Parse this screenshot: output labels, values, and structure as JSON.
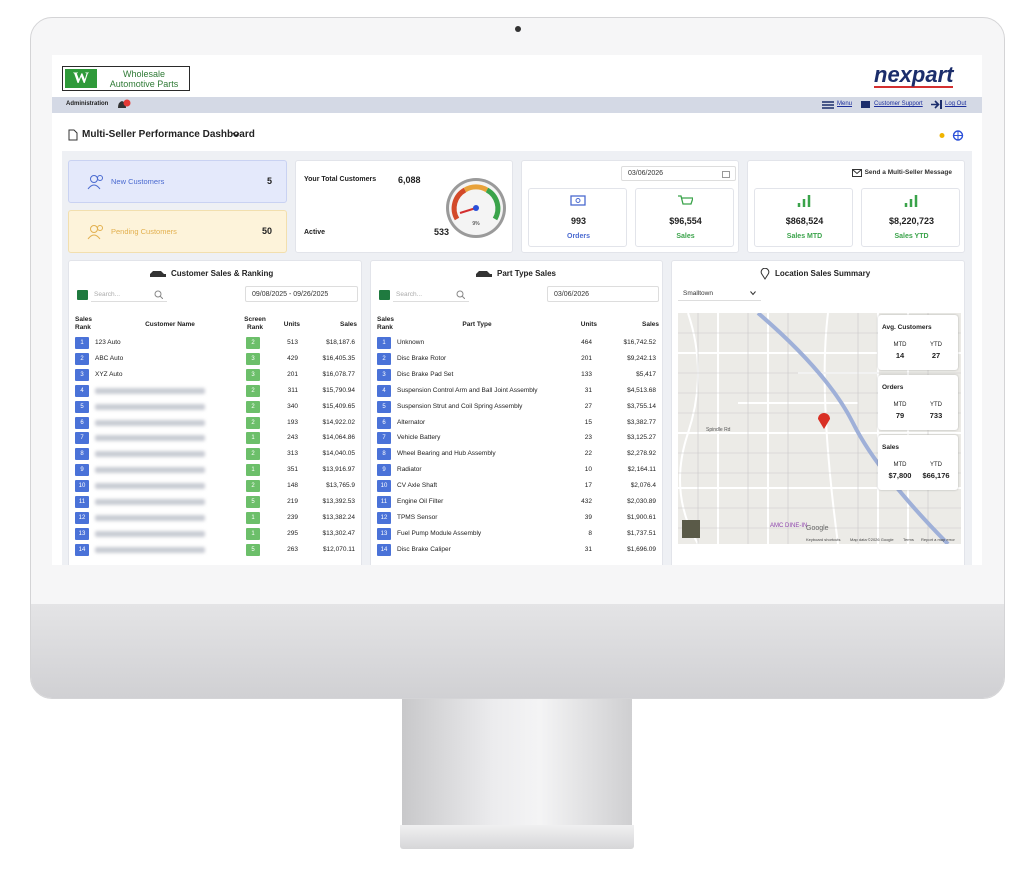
{
  "header": {
    "logo_line1": "Wholesale",
    "logo_line2": "Automotive Parts",
    "brand": "nexpart"
  },
  "nav": {
    "left": "Administration",
    "links": [
      "Menu",
      "Customer Support",
      "Log Out"
    ]
  },
  "title": "Multi-Seller Performance Dashboard",
  "cards": {
    "new_customers": {
      "label": "New Customers",
      "value": 5
    },
    "pending_customers": {
      "label": "Pending Customers",
      "value": 50
    },
    "total_customers": {
      "label": "Your Total Customers",
      "value": "6,088"
    },
    "active": {
      "label": "Active",
      "value": 533
    },
    "gauge_label": "9%",
    "date": "03/06/2026",
    "orders": {
      "value": 993,
      "label": "Orders"
    },
    "sales": {
      "value": "$96,554",
      "label": "Sales"
    },
    "message": "Send a Multi-Seller Message",
    "sales_mtd": {
      "value": "$868,524",
      "label": "Sales MTD"
    },
    "sales_ytd": {
      "value": "$8,220,723",
      "label": "Sales YTD"
    }
  },
  "customer_sales": {
    "title": "Customer Sales & Ranking",
    "search": "Search...",
    "date_range": "09/08/2025 - 09/26/2025",
    "columns": [
      "Sales Rank",
      "Customer Name",
      "Screen Rank",
      "Units",
      "Sales"
    ],
    "rows": [
      [
        1,
        "123 Auto",
        2,
        513,
        "$18,187.6"
      ],
      [
        2,
        "ABC Auto",
        3,
        429,
        "$16,405.35"
      ],
      [
        3,
        "XYZ Auto",
        3,
        201,
        "$16,078.77"
      ],
      [
        4,
        null,
        2,
        311,
        "$15,790.94"
      ],
      [
        5,
        null,
        2,
        340,
        "$15,409.65"
      ],
      [
        6,
        null,
        2,
        193,
        "$14,922.02"
      ],
      [
        7,
        null,
        1,
        243,
        "$14,064.86"
      ],
      [
        8,
        null,
        2,
        313,
        "$14,040.05"
      ],
      [
        9,
        null,
        1,
        351,
        "$13,916.97"
      ],
      [
        10,
        null,
        2,
        148,
        "$13,765.9"
      ],
      [
        11,
        null,
        5,
        219,
        "$13,392.53"
      ],
      [
        12,
        null,
        1,
        239,
        "$13,382.24"
      ],
      [
        13,
        null,
        1,
        295,
        "$13,302.47"
      ],
      [
        14,
        null,
        5,
        263,
        "$12,070.11"
      ]
    ]
  },
  "part_type_sales": {
    "title": "Part Type Sales",
    "search": "Search...",
    "date": "03/06/2026",
    "columns": [
      "Sales Rank",
      "Part Type",
      "Units",
      "Sales"
    ],
    "rows": [
      [
        1,
        "Unknown",
        464,
        "$16,742.52"
      ],
      [
        2,
        "Disc Brake Rotor",
        201,
        "$9,242.13"
      ],
      [
        3,
        "Disc Brake Pad Set",
        133,
        "$5,417"
      ],
      [
        4,
        "Suspension Control Arm and Ball Joint Assembly",
        31,
        "$4,513.68"
      ],
      [
        5,
        "Suspension Strut and Coil Spring Assembly",
        27,
        "$3,755.14"
      ],
      [
        6,
        "Alternator",
        15,
        "$3,382.77"
      ],
      [
        7,
        "Vehicle Battery",
        23,
        "$3,125.27"
      ],
      [
        8,
        "Wheel Bearing and Hub Assembly",
        22,
        "$2,278.92"
      ],
      [
        9,
        "Radiator",
        10,
        "$2,164.11"
      ],
      [
        10,
        "CV Axle Shaft",
        17,
        "$2,076.4"
      ],
      [
        11,
        "Engine Oil Filter",
        432,
        "$2,030.89"
      ],
      [
        12,
        "TPMS Sensor",
        39,
        "$1,900.61"
      ],
      [
        13,
        "Fuel Pump Module Assembly",
        8,
        "$1,737.51"
      ],
      [
        14,
        "Disc Brake Caliper",
        31,
        "$1,696.09"
      ]
    ]
  },
  "location": {
    "title": "Location Sales Summary",
    "dropdown": "Smalltown",
    "avg_customers": {
      "label": "Avg. Customers",
      "mtd_label": "MTD",
      "ytd_label": "YTD",
      "mtd": 14,
      "ytd": 27
    },
    "orders": {
      "label": "Orders",
      "mtd_label": "MTD",
      "ytd_label": "YTD",
      "mtd": 79,
      "ytd": 733
    },
    "sales": {
      "label": "Sales",
      "mtd_label": "MTD",
      "ytd_label": "YTD",
      "mtd": "$7,800",
      "ytd": "$66,176"
    },
    "map_labels": [
      "Spindle Rd",
      "AMC DINE-IN",
      "Google",
      "Keyboard shortcuts",
      "Map data ©2026 Google",
      "Terms",
      "Report a map error"
    ]
  }
}
